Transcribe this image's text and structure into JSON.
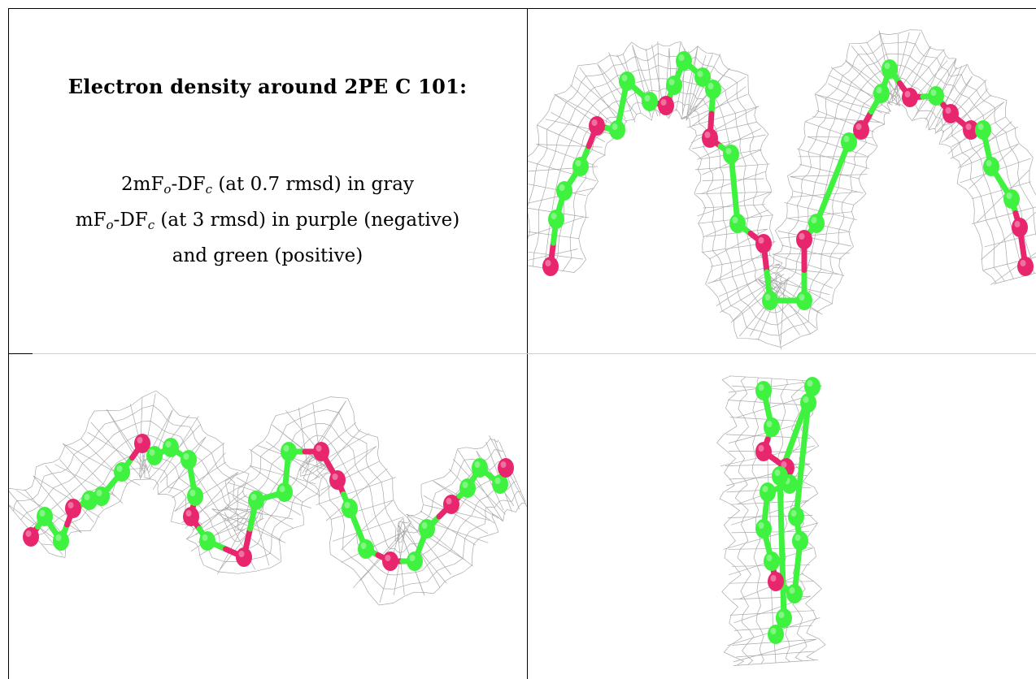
{
  "caption": {
    "title": "Electron density around 2PE C 101:",
    "line1": {
      "pre": "2mF",
      "sub1": "o",
      "mid": "-DF",
      "sub2": "c",
      "post": " (at 0.7 rmsd) in gray"
    },
    "line2": {
      "pre": "mF",
      "sub1": "o",
      "mid": "-DF",
      "sub2": "c",
      "post": " (at 3 rmsd) in purple (negative)"
    },
    "line3": "and green (positive)"
  },
  "colors": {
    "mesh": "#9a9a9a",
    "carbon": "#3ff23f",
    "oxygen": "#e8266e",
    "border": "#000000"
  },
  "views": [
    {
      "name": "front-view"
    },
    {
      "name": "top-view"
    },
    {
      "name": "end-on-view"
    }
  ]
}
